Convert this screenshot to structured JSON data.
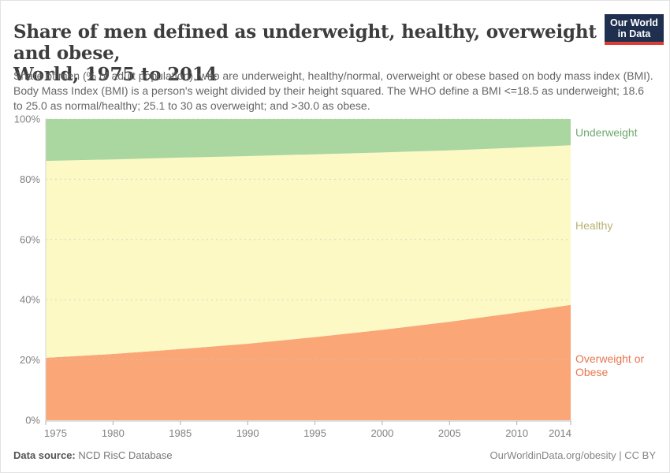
{
  "header": {
    "title_line1": "Share of men defined as underweight, healthy, overweight and obese,",
    "title_line2": "World, 1975 to 2014",
    "subtitle": "Share of men (% of adult population), who are underweight, healthy/normal, overweight or obese based on body mass index (BMI). Body Mass Index (BMI) is a person's weight divided by their height squared. The WHO define a BMI <=18.5 as underweight; 18.6 to 25.0 as normal/healthy; 25.1 to 30 as overweight; and >30.0 as obese.",
    "logo": {
      "line1": "Our World",
      "line2": "in Data",
      "bg_color": "#1f2f4f",
      "stripe_color": "#dc3d34"
    }
  },
  "chart_data": {
    "type": "area",
    "stacked": true,
    "title": "Share of men defined as underweight, healthy, overweight and obese, World, 1975 to 2014",
    "x": [
      1975,
      1980,
      1985,
      1990,
      1995,
      2000,
      2005,
      2010,
      2014
    ],
    "xticks": [
      1975,
      1980,
      1985,
      1990,
      1995,
      2000,
      2005,
      2010,
      2014
    ],
    "ylim": [
      0,
      100
    ],
    "yticks": [
      0,
      20,
      40,
      60,
      80,
      100
    ],
    "y_unit": "%",
    "grid": true,
    "legend_position": "right",
    "series": [
      {
        "name": "Overweight or Obese",
        "fill": "#faa677",
        "label_color": "#e8764f",
        "values": [
          20.7,
          22.0,
          23.6,
          25.4,
          27.6,
          30.0,
          32.7,
          35.7,
          38.3
        ]
      },
      {
        "name": "Healthy",
        "fill": "#fcf9c5",
        "label_color": "#b5b273",
        "values": [
          65.4,
          64.6,
          63.6,
          62.3,
          60.7,
          58.9,
          56.9,
          54.8,
          53.0
        ]
      },
      {
        "name": "Underweight",
        "fill": "#aad6a0",
        "label_color": "#6fa86f",
        "values": [
          13.9,
          13.4,
          12.8,
          12.3,
          11.7,
          11.1,
          10.4,
          9.5,
          8.7
        ]
      }
    ]
  },
  "footer": {
    "source_label": "Data source:",
    "source_value": "NCD RisC Database",
    "link": "OurWorldinData.org/obesity | CC BY"
  }
}
